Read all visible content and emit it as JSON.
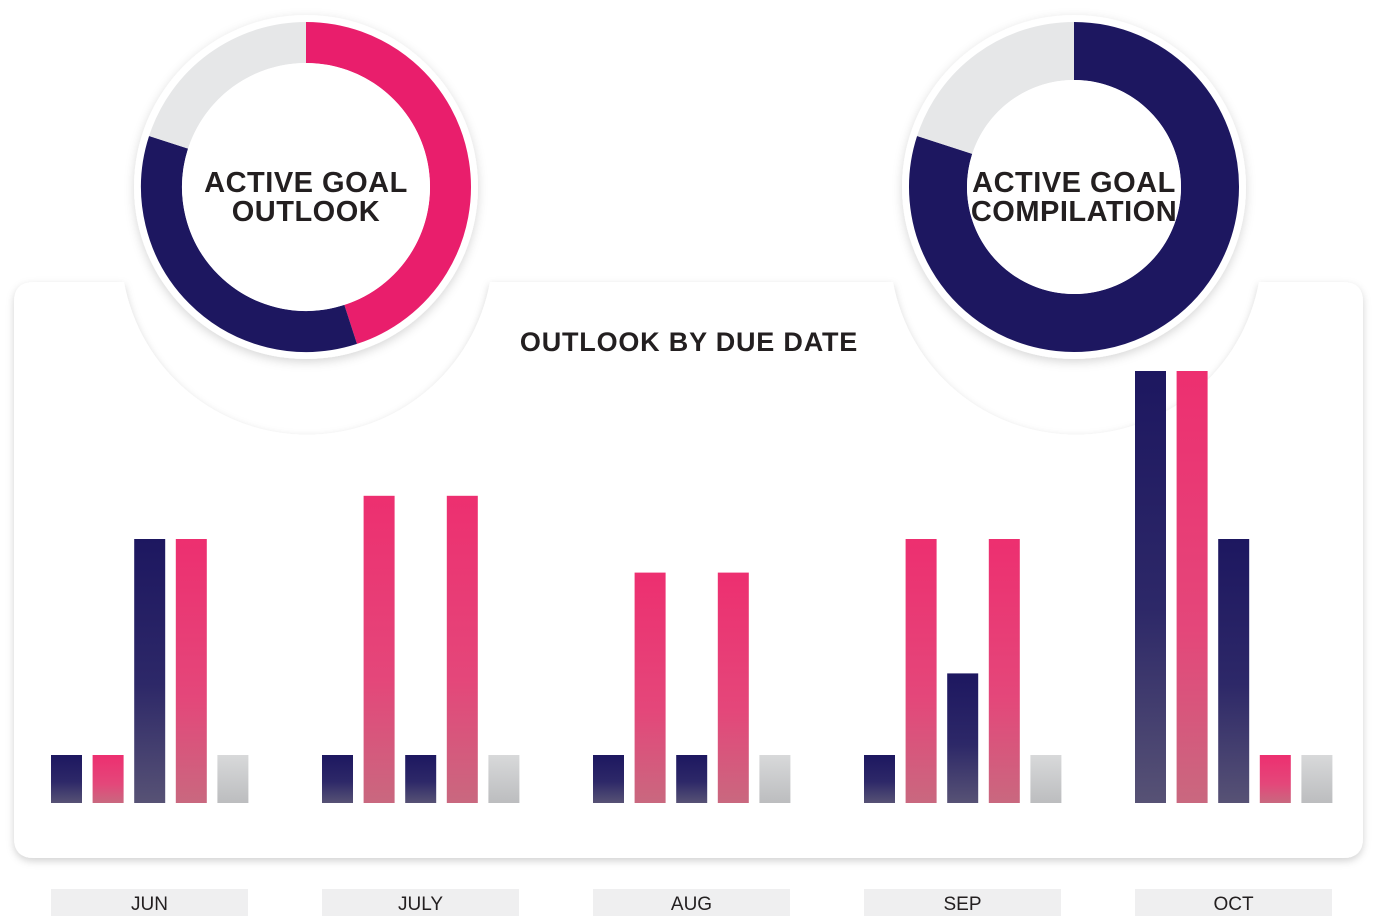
{
  "donuts": [
    {
      "title_line1": "ACTIVE GOAL",
      "title_line2": "OUTLOOK",
      "segments": [
        {
          "name": "pink",
          "fraction": 0.45,
          "color": "#e91e6c"
        },
        {
          "name": "navy",
          "fraction": 0.35,
          "color": "#1d1760"
        },
        {
          "name": "gray",
          "fraction": 0.2,
          "color": "#e6e7e8"
        }
      ]
    },
    {
      "title_line1": "ACTIVE GOAL",
      "title_line2": "COMPILATION",
      "segments": [
        {
          "name": "navy",
          "fraction": 0.8,
          "color": "#1d1760"
        },
        {
          "name": "gray",
          "fraction": 0.2,
          "color": "#e6e7e8"
        }
      ]
    }
  ],
  "chart_data": {
    "type": "bar",
    "title": "OUTLOOK BY DUE DATE",
    "categories": [
      "JUN",
      "JULY",
      "AUG",
      "SEP",
      "OCT"
    ],
    "ylim": [
      0,
      9
    ],
    "grid": false,
    "legend": "none",
    "bar_colors": [
      "#1d1760",
      "#ed2f70",
      "#1d1760",
      "#ed2f70",
      "#d1d3d4"
    ],
    "series": [
      {
        "values": [
          1,
          1,
          1,
          1,
          9
        ]
      },
      {
        "values": [
          1,
          6.4,
          4.8,
          5.5,
          9
        ]
      },
      {
        "values": [
          5.5,
          1,
          1,
          2.7,
          5.5
        ]
      },
      {
        "values": [
          5.5,
          6.4,
          4.8,
          5.5,
          1
        ]
      },
      {
        "values": [
          1,
          1,
          1,
          1,
          1
        ]
      }
    ]
  },
  "colors": {
    "navy": "#1d1760",
    "pink": "#ed2f70",
    "pink_ring": "#e91e6c",
    "gray": "#d1d3d4",
    "track": "#e6e7e8",
    "label_bg": "#efeff0"
  }
}
